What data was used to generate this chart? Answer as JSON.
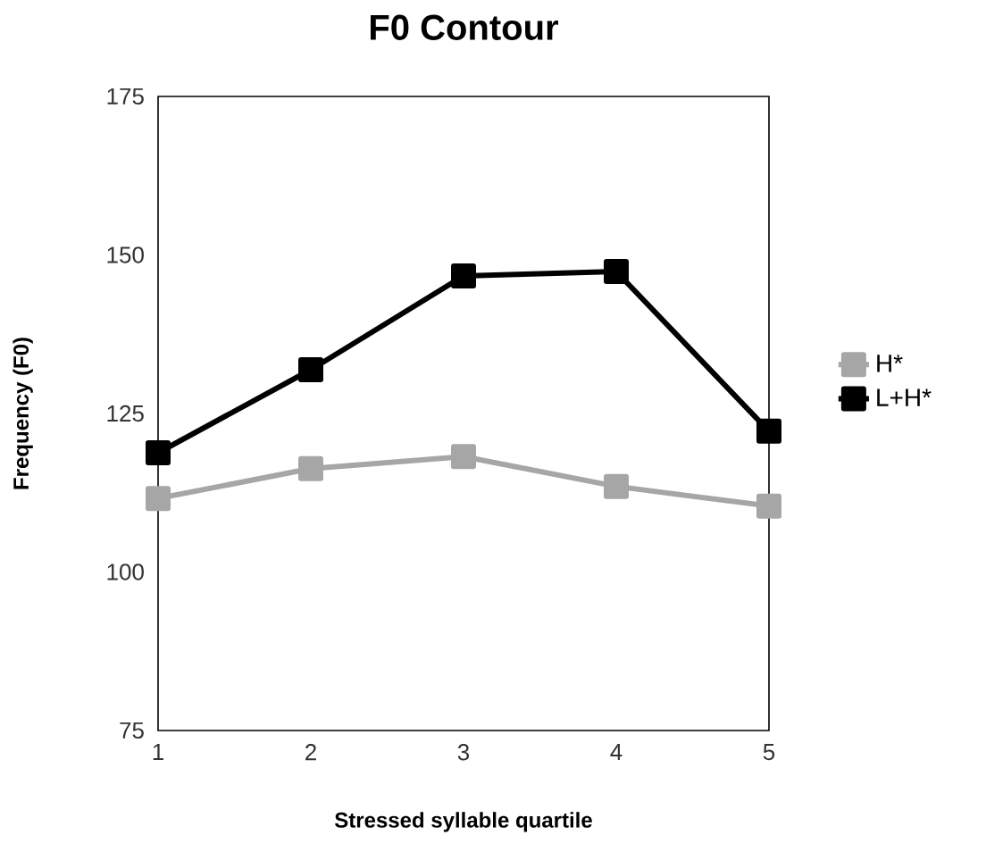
{
  "chart_data": {
    "type": "line",
    "title": "F0 Contour",
    "xlabel": "Stressed syllable quartile",
    "ylabel": "Frequency (F0)",
    "x": [
      1,
      2,
      3,
      4,
      5
    ],
    "series": [
      {
        "name": "H*",
        "color": "#a6a6a6",
        "values": [
          111.6,
          116.3,
          118.2,
          113.5,
          110.4
        ]
      },
      {
        "name": "L+H*",
        "color": "#000000",
        "values": [
          118.8,
          131.9,
          146.7,
          147.4,
          122.2
        ]
      }
    ],
    "xlim": [
      1,
      5
    ],
    "xticks": [
      1,
      2,
      3,
      4,
      5
    ],
    "ylim": [
      75,
      175
    ],
    "yticks": [
      75,
      100,
      125,
      150,
      175
    ],
    "grid": false,
    "legend": "right",
    "marker": "square",
    "line_style": "solid"
  }
}
